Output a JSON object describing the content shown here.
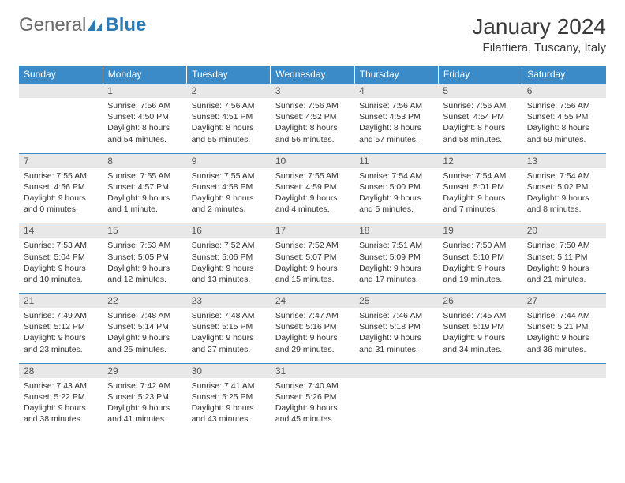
{
  "logo": {
    "text1": "General",
    "text2": "Blue"
  },
  "title": "January 2024",
  "location": "Filattiera, Tuscany, Italy",
  "colors": {
    "header_bg": "#3b8bc8",
    "header_text": "#ffffff",
    "daynum_bg": "#e8e8e8",
    "cell_border": "#3b8bc8",
    "body_text": "#333333",
    "logo_gray": "#6a6a6a",
    "logo_blue": "#2a7ab8"
  },
  "day_headers": [
    "Sunday",
    "Monday",
    "Tuesday",
    "Wednesday",
    "Thursday",
    "Friday",
    "Saturday"
  ],
  "weeks": [
    {
      "nums": [
        "",
        "1",
        "2",
        "3",
        "4",
        "5",
        "6"
      ],
      "cells": [
        "",
        "Sunrise: 7:56 AM\nSunset: 4:50 PM\nDaylight: 8 hours and 54 minutes.",
        "Sunrise: 7:56 AM\nSunset: 4:51 PM\nDaylight: 8 hours and 55 minutes.",
        "Sunrise: 7:56 AM\nSunset: 4:52 PM\nDaylight: 8 hours and 56 minutes.",
        "Sunrise: 7:56 AM\nSunset: 4:53 PM\nDaylight: 8 hours and 57 minutes.",
        "Sunrise: 7:56 AM\nSunset: 4:54 PM\nDaylight: 8 hours and 58 minutes.",
        "Sunrise: 7:56 AM\nSunset: 4:55 PM\nDaylight: 8 hours and 59 minutes."
      ]
    },
    {
      "nums": [
        "7",
        "8",
        "9",
        "10",
        "11",
        "12",
        "13"
      ],
      "cells": [
        "Sunrise: 7:55 AM\nSunset: 4:56 PM\nDaylight: 9 hours and 0 minutes.",
        "Sunrise: 7:55 AM\nSunset: 4:57 PM\nDaylight: 9 hours and 1 minute.",
        "Sunrise: 7:55 AM\nSunset: 4:58 PM\nDaylight: 9 hours and 2 minutes.",
        "Sunrise: 7:55 AM\nSunset: 4:59 PM\nDaylight: 9 hours and 4 minutes.",
        "Sunrise: 7:54 AM\nSunset: 5:00 PM\nDaylight: 9 hours and 5 minutes.",
        "Sunrise: 7:54 AM\nSunset: 5:01 PM\nDaylight: 9 hours and 7 minutes.",
        "Sunrise: 7:54 AM\nSunset: 5:02 PM\nDaylight: 9 hours and 8 minutes."
      ]
    },
    {
      "nums": [
        "14",
        "15",
        "16",
        "17",
        "18",
        "19",
        "20"
      ],
      "cells": [
        "Sunrise: 7:53 AM\nSunset: 5:04 PM\nDaylight: 9 hours and 10 minutes.",
        "Sunrise: 7:53 AM\nSunset: 5:05 PM\nDaylight: 9 hours and 12 minutes.",
        "Sunrise: 7:52 AM\nSunset: 5:06 PM\nDaylight: 9 hours and 13 minutes.",
        "Sunrise: 7:52 AM\nSunset: 5:07 PM\nDaylight: 9 hours and 15 minutes.",
        "Sunrise: 7:51 AM\nSunset: 5:09 PM\nDaylight: 9 hours and 17 minutes.",
        "Sunrise: 7:50 AM\nSunset: 5:10 PM\nDaylight: 9 hours and 19 minutes.",
        "Sunrise: 7:50 AM\nSunset: 5:11 PM\nDaylight: 9 hours and 21 minutes."
      ]
    },
    {
      "nums": [
        "21",
        "22",
        "23",
        "24",
        "25",
        "26",
        "27"
      ],
      "cells": [
        "Sunrise: 7:49 AM\nSunset: 5:12 PM\nDaylight: 9 hours and 23 minutes.",
        "Sunrise: 7:48 AM\nSunset: 5:14 PM\nDaylight: 9 hours and 25 minutes.",
        "Sunrise: 7:48 AM\nSunset: 5:15 PM\nDaylight: 9 hours and 27 minutes.",
        "Sunrise: 7:47 AM\nSunset: 5:16 PM\nDaylight: 9 hours and 29 minutes.",
        "Sunrise: 7:46 AM\nSunset: 5:18 PM\nDaylight: 9 hours and 31 minutes.",
        "Sunrise: 7:45 AM\nSunset: 5:19 PM\nDaylight: 9 hours and 34 minutes.",
        "Sunrise: 7:44 AM\nSunset: 5:21 PM\nDaylight: 9 hours and 36 minutes."
      ]
    },
    {
      "nums": [
        "28",
        "29",
        "30",
        "31",
        "",
        "",
        ""
      ],
      "cells": [
        "Sunrise: 7:43 AM\nSunset: 5:22 PM\nDaylight: 9 hours and 38 minutes.",
        "Sunrise: 7:42 AM\nSunset: 5:23 PM\nDaylight: 9 hours and 41 minutes.",
        "Sunrise: 7:41 AM\nSunset: 5:25 PM\nDaylight: 9 hours and 43 minutes.",
        "Sunrise: 7:40 AM\nSunset: 5:26 PM\nDaylight: 9 hours and 45 minutes.",
        "",
        "",
        ""
      ]
    }
  ]
}
